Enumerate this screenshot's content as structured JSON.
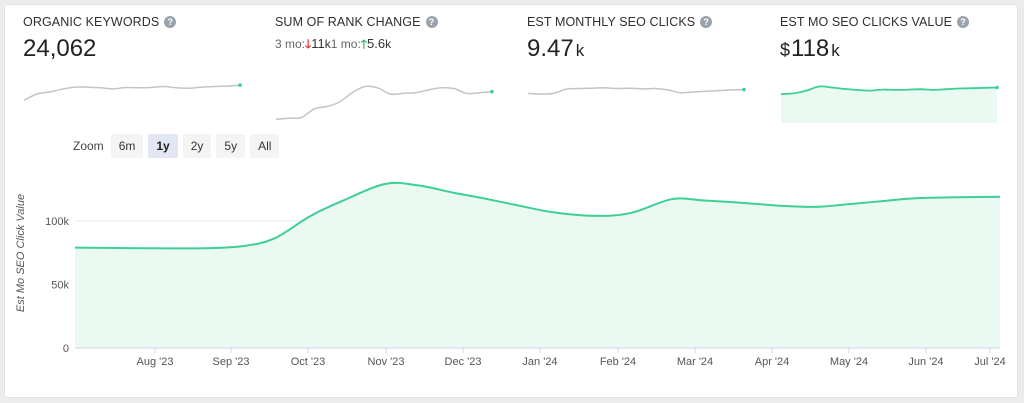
{
  "metrics": [
    {
      "title": "ORGANIC KEYWORDS",
      "value": "24,062"
    },
    {
      "title": "SUM OF RANK CHANGE",
      "down_prefix": "3 mo:",
      "down_arrow": "🡓",
      "down_value": "11",
      "down_suffix": "k",
      "up_prefix": "1 mo:",
      "up_arrow": "🡑",
      "up_value": "5.6",
      "up_suffix": "k"
    },
    {
      "title": "EST MONTHLY SEO CLICKS",
      "value": "9.47",
      "suffix": "k"
    },
    {
      "title": "EST MO SEO CLICKS VALUE",
      "prefix": "$",
      "value": "118",
      "suffix": "k"
    }
  ],
  "help_glyph": "?",
  "zoom": {
    "label": "Zoom",
    "options": [
      "6m",
      "1y",
      "2y",
      "5y",
      "All"
    ],
    "selected": "1y"
  },
  "chart_data": {
    "type": "area",
    "ylabel": "Est Mo SEO Click Value",
    "y_ticks": [
      0,
      50000,
      100000
    ],
    "y_tick_labels": [
      "0",
      "50k",
      "100k"
    ],
    "ylim": [
      0,
      140000
    ],
    "x_tick_labels": [
      "Aug '23",
      "Sep '23",
      "Oct '23",
      "Nov '23",
      "Dec '23",
      "Jan '24",
      "Feb '24",
      "Mar '24",
      "Apr '24",
      "May '24",
      "Jun '24",
      "Jul '24"
    ],
    "x": [
      "Jul 7 '23",
      "Jul 28 '23",
      "Aug 18 '23",
      "Sep 1 '23",
      "Sep 15 '23",
      "Oct 1 '23",
      "Oct 15 '23",
      "Nov 1 '23",
      "Nov 15 '23",
      "Dec 1 '23",
      "Dec 15 '23",
      "Jan 1 '24",
      "Jan 15 '24",
      "Feb 1 '24",
      "Feb 15 '24",
      "Mar 1 '24",
      "Mar 15 '24",
      "Apr 1 '24",
      "Apr 15 '24",
      "May 1 '24",
      "May 15 '24",
      "Jun 1 '24",
      "Jun 15 '24",
      "Jul 10 '24"
    ],
    "values": [
      79000,
      78500,
      78500,
      80000,
      86000,
      104000,
      116000,
      129000,
      128000,
      122000,
      118000,
      112000,
      107000,
      104000,
      106000,
      117000,
      116000,
      114000,
      112000,
      111000,
      113000,
      116000,
      118000,
      119000
    ],
    "grid": true,
    "color": "#3ecf95",
    "fill": "#eafaf3"
  },
  "sparklines": [
    {
      "values": [
        60,
        78,
        84,
        92,
        98,
        98,
        96,
        93,
        97,
        96,
        97,
        100,
        96,
        95,
        98,
        100,
        101,
        104
      ],
      "color": "#c4c4c4",
      "fill": "none",
      "end_color": "#3ecf95"
    },
    {
      "values": [
        5,
        8,
        10,
        35,
        42,
        55,
        82,
        100,
        96,
        78,
        80,
        82,
        90,
        96,
        94,
        80,
        82,
        85
      ],
      "color": "#c4c4c4",
      "fill": "none",
      "end_color": "#3ecf95"
    },
    {
      "values": [
        80,
        78,
        80,
        92,
        94,
        95,
        96,
        94,
        95,
        93,
        94,
        90,
        82,
        84,
        86,
        88,
        90,
        91
      ],
      "color": "#c4c4c4",
      "fill": "none",
      "end_color": "#3ecf95"
    },
    {
      "values": [
        78,
        80,
        88,
        100,
        97,
        93,
        90,
        88,
        91,
        90,
        91,
        92,
        90,
        92,
        94,
        95,
        96,
        97
      ],
      "color": "#3ecf95",
      "fill": "#eafaf3",
      "end_color": "#3ecf95"
    }
  ]
}
